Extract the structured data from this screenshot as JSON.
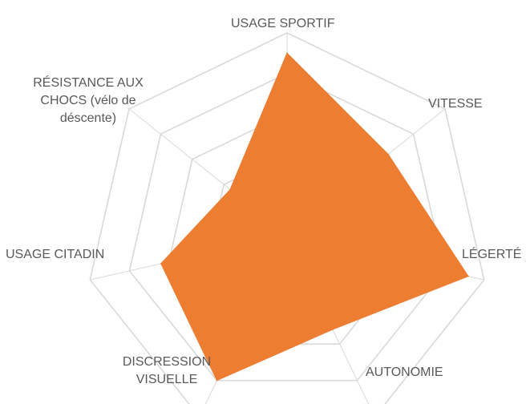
{
  "chart_data": {
    "type": "radar",
    "title": "",
    "categories": [
      "USAGE SPORTIF",
      "VITESSE",
      "LÉGERTÉ",
      "AUTONOMIE",
      "DISCRESSION VISUELLE",
      "USAGE CITADIN",
      "RÉSISTANCE AUX CHOCS (vélo de déscente)"
    ],
    "series": [
      {
        "values": [
          4.5,
          3.2,
          4.6,
          2.6,
          4.0,
          3.2,
          1.8
        ],
        "color": "#ED7D31"
      }
    ],
    "range": [
      0,
      5
    ],
    "grid": true,
    "legend": "none"
  },
  "labels": {
    "usage_sportif": "USAGE SPORTIF",
    "vitesse": "VITESSE",
    "legerte": "LÉGERTÉ",
    "autonomie": "AUTONOMIE",
    "discression_l1": "DISCRESSION",
    "discression_l2": "VISUELLE",
    "usage_citadin": "USAGE CITADIN",
    "resistance_l1": "RÉSISTANCE AUX",
    "resistance_l2": "CHOCS (vélo de",
    "resistance_l3": "déscente)"
  }
}
